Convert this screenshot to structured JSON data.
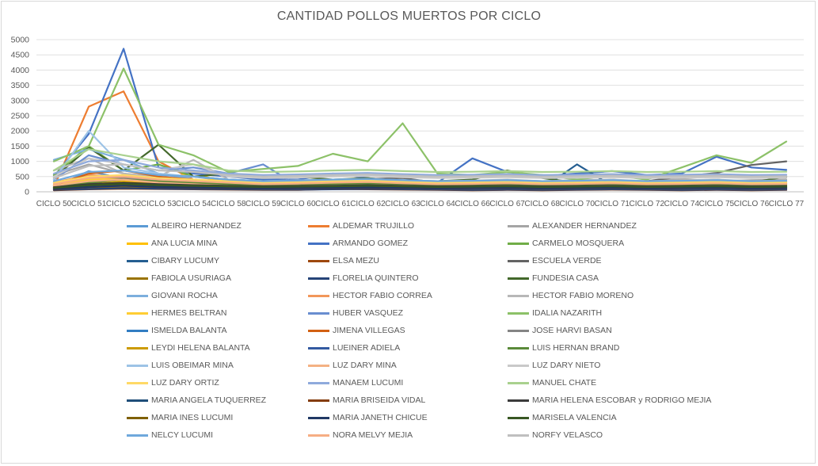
{
  "chart_data": {
    "type": "line",
    "title": "CANTIDAD POLLOS MUERTOS POR CICLO",
    "xlabel": "",
    "ylabel": "",
    "ylim": [
      0,
      5000
    ],
    "yticks": [
      0,
      500,
      1000,
      1500,
      2000,
      2500,
      3000,
      3500,
      4000,
      4500,
      5000
    ],
    "grid": true,
    "legend_position": "bottom",
    "categories": [
      "CICLO 50",
      "CICLO 51",
      "CICLO 52",
      "CICLO 53",
      "CICLO 54",
      "CICLO 58",
      "CICLO 59",
      "CICLO 60",
      "CICLO 61",
      "CICLO 62",
      "CICLO 63",
      "CICLO 64",
      "CICLO 66",
      "CICLO 67",
      "CICLO 68",
      "CICLO 70",
      "CICLO 71",
      "CICLO 72",
      "CICLO 74",
      "CICLO 75",
      "CICLO 76",
      "CICLO 77"
    ],
    "series": [
      {
        "name": "ALBEIRO HERNANDEZ",
        "color": "#5b9bd5",
        "values": [
          150,
          680,
          430,
          300,
          250,
          200,
          150,
          160,
          180,
          220,
          160,
          140,
          150,
          160,
          140,
          200,
          190,
          170,
          160,
          160,
          150,
          160
        ]
      },
      {
        "name": "ALDEMAR TRUJILLO",
        "color": "#ed7d31",
        "values": [
          150,
          2800,
          3300,
          1000,
          400,
          300,
          280,
          260,
          300,
          350,
          280,
          240,
          250,
          260,
          240,
          250,
          260,
          220,
          250,
          280,
          300,
          350
        ]
      },
      {
        "name": "ALEXANDER HERNANDEZ",
        "color": "#a5a5a5",
        "values": [
          550,
          900,
          600,
          400,
          500,
          350,
          300,
          330,
          350,
          400,
          350,
          300,
          320,
          350,
          300,
          400,
          380,
          340,
          420,
          350,
          380,
          400
        ]
      },
      {
        "name": "ANA LUCIA MINA",
        "color": "#ffc000",
        "values": [
          200,
          300,
          350,
          250,
          700,
          150,
          120,
          140,
          160,
          180,
          120,
          80,
          100,
          120,
          100,
          140,
          110,
          90,
          100,
          120,
          150,
          200
        ]
      },
      {
        "name": "ARMANDO GOMEZ",
        "color": "#4472c4",
        "values": [
          500,
          1900,
          4700,
          800,
          600,
          500,
          400,
          400,
          600,
          450,
          350,
          300,
          1100,
          650,
          520,
          600,
          680,
          550,
          600,
          1150,
          800,
          720
        ]
      },
      {
        "name": "CARMELO MOSQUERA",
        "color": "#70ad47",
        "values": [
          550,
          1500,
          700,
          900,
          500,
          400,
          350,
          300,
          330,
          350,
          300,
          250,
          280,
          300,
          250,
          300,
          280,
          250,
          260,
          270,
          250,
          300
        ]
      },
      {
        "name": "CIBARY LUCUMY",
        "color": "#255e91",
        "values": [
          100,
          150,
          200,
          180,
          160,
          140,
          120,
          110,
          150,
          160,
          140,
          120,
          110,
          120,
          110,
          900,
          200,
          150,
          140,
          160,
          120,
          130
        ]
      },
      {
        "name": "ELSA MEZU",
        "color": "#9e480e",
        "values": [
          50,
          80,
          100,
          90,
          80,
          70,
          60,
          60,
          90,
          80,
          70,
          60,
          50,
          60,
          50,
          60,
          70,
          60,
          50,
          60,
          50,
          60
        ]
      },
      {
        "name": "ESCUELA VERDE",
        "color": "#636363",
        "values": [
          150,
          300,
          400,
          350,
          300,
          250,
          200,
          220,
          380,
          420,
          450,
          300,
          320,
          280,
          300,
          340,
          300,
          350,
          500,
          620,
          880,
          1000
        ]
      },
      {
        "name": "FABIOLA USURIAGA",
        "color": "#997300",
        "values": [
          80,
          120,
          150,
          130,
          110,
          90,
          80,
          90,
          100,
          110,
          90,
          80,
          70,
          80,
          70,
          80,
          90,
          80,
          70,
          80,
          70,
          80
        ]
      },
      {
        "name": "FLORELIA QUINTERO",
        "color": "#264478",
        "values": [
          60,
          90,
          120,
          100,
          90,
          80,
          70,
          70,
          80,
          90,
          80,
          70,
          60,
          70,
          60,
          70,
          80,
          70,
          60,
          70,
          60,
          70
        ]
      },
      {
        "name": "FUNDESIA CASA",
        "color": "#43682b",
        "values": [
          450,
          1450,
          700,
          1550,
          500,
          600,
          450,
          500,
          400,
          450,
          300,
          350,
          400,
          700,
          450,
          300,
          400,
          300,
          350,
          400,
          300,
          500
        ]
      },
      {
        "name": "GIOVANI ROCHA",
        "color": "#7cafdd",
        "values": [
          1050,
          1400,
          1050,
          600,
          400,
          300,
          250,
          300,
          280,
          300,
          250,
          200,
          220,
          250,
          200,
          250,
          240,
          200,
          220,
          250,
          200,
          250
        ]
      },
      {
        "name": "HECTOR FABIO CORREA",
        "color": "#f1975a",
        "values": [
          300,
          550,
          500,
          400,
          350,
          300,
          250,
          280,
          400,
          350,
          300,
          250,
          270,
          300,
          280,
          300,
          350,
          300,
          280,
          300,
          280,
          300
        ]
      },
      {
        "name": "HECTOR FABIO MORENO",
        "color": "#b7b7b7",
        "values": [
          700,
          1100,
          600,
          500,
          1050,
          400,
          350,
          380,
          400,
          420,
          380,
          350,
          370,
          400,
          350,
          380,
          400,
          350,
          380,
          400,
          350,
          380
        ]
      },
      {
        "name": "HERMES BELTRAN",
        "color": "#ffcd33",
        "values": [
          250,
          400,
          450,
          350,
          300,
          200,
          180,
          160,
          200,
          220,
          180,
          150,
          160,
          180,
          150,
          170,
          180,
          160,
          150,
          160,
          150,
          180
        ]
      },
      {
        "name": "HUBER VASQUEZ",
        "color": "#698ed0",
        "values": [
          400,
          1200,
          900,
          700,
          800,
          600,
          900,
          200,
          300,
          350,
          300,
          250,
          270,
          300,
          250,
          270,
          250,
          230,
          250,
          270,
          250,
          270
        ]
      },
      {
        "name": "IDALIA NAZARITH",
        "color": "#8cc168",
        "values": [
          1000,
          1500,
          4050,
          1550,
          1200,
          650,
          750,
          850,
          1250,
          1000,
          2250,
          600,
          550,
          650,
          550,
          400,
          550,
          400,
          800,
          1200,
          950,
          1650
        ]
      },
      {
        "name": "ISMELDA BALANTA",
        "color": "#327dc2",
        "values": [
          100,
          150,
          200,
          180,
          150,
          120,
          100,
          110,
          130,
          140,
          120,
          100,
          110,
          120,
          100,
          110,
          120,
          100,
          110,
          120,
          100,
          110
        ]
      },
      {
        "name": "JIMENA VILLEGAS",
        "color": "#d26012",
        "values": [
          200,
          600,
          700,
          500,
          400,
          300,
          250,
          280,
          300,
          350,
          300,
          250,
          270,
          300,
          250,
          270,
          300,
          250,
          270,
          300,
          250,
          270
        ]
      },
      {
        "name": "JOSE HARVI BASAN",
        "color": "#848484",
        "values": [
          300,
          500,
          450,
          400,
          350,
          300,
          250,
          270,
          300,
          320,
          280,
          250,
          260,
          280,
          250,
          260,
          280,
          250,
          260,
          280,
          250,
          260
        ]
      },
      {
        "name": "LEYDI HELENA BALANTA",
        "color": "#cc9a00",
        "values": [
          150,
          250,
          300,
          250,
          200,
          180,
          150,
          160,
          180,
          200,
          180,
          150,
          160,
          180,
          150,
          160,
          180,
          150,
          160,
          180,
          150,
          160
        ]
      },
      {
        "name": "LUEINER ADIELA",
        "color": "#335aa1",
        "values": [
          120,
          200,
          250,
          200,
          180,
          150,
          130,
          140,
          160,
          180,
          160,
          140,
          150,
          160,
          140,
          150,
          160,
          140,
          150,
          160,
          140,
          150
        ]
      },
      {
        "name": "LUIS HERNAN BRAND",
        "color": "#5a8a39",
        "values": [
          200,
          300,
          400,
          350,
          300,
          250,
          220,
          230,
          250,
          270,
          250,
          220,
          230,
          250,
          220,
          230,
          250,
          220,
          230,
          250,
          220,
          230
        ]
      },
      {
        "name": "LUIS OBEIMAR MINA",
        "color": "#9dc3e6",
        "values": [
          400,
          2000,
          800,
          600,
          500,
          400,
          350,
          370,
          400,
          420,
          380,
          350,
          360,
          380,
          350,
          360,
          380,
          350,
          360,
          380,
          350,
          360
        ]
      },
      {
        "name": "LUZ DARY MINA",
        "color": "#f4b183",
        "values": [
          200,
          350,
          400,
          300,
          250,
          200,
          180,
          190,
          200,
          220,
          200,
          180,
          190,
          200,
          180,
          190,
          200,
          180,
          190,
          200,
          180,
          190
        ]
      },
      {
        "name": "LUZ DARY NIETO",
        "color": "#c9c9c9",
        "values": [
          500,
          1100,
          900,
          700,
          900,
          500,
          450,
          470,
          500,
          520,
          480,
          450,
          460,
          480,
          450,
          460,
          480,
          450,
          460,
          480,
          450,
          460
        ]
      },
      {
        "name": "LUZ DARY ORTIZ",
        "color": "#ffd966",
        "values": [
          300,
          500,
          550,
          450,
          400,
          350,
          300,
          320,
          350,
          370,
          330,
          300,
          310,
          330,
          300,
          310,
          330,
          300,
          310,
          330,
          300,
          310
        ]
      },
      {
        "name": "MANAEM LUCUMI",
        "color": "#8faadc",
        "values": [
          600,
          1000,
          1050,
          800,
          700,
          600,
          550,
          570,
          600,
          620,
          580,
          550,
          560,
          580,
          550,
          560,
          580,
          550,
          560,
          580,
          550,
          560
        ]
      },
      {
        "name": "MANUEL CHATE",
        "color": "#a9d18e",
        "values": [
          700,
          1400,
          1200,
          1000,
          900,
          700,
          650,
          670,
          700,
          720,
          680,
          650,
          660,
          680,
          650,
          660,
          680,
          650,
          660,
          680,
          650,
          660
        ]
      },
      {
        "name": "MARIA ANGELA TUQUERREZ",
        "color": "#1f4e79",
        "values": [
          100,
          200,
          250,
          200,
          180,
          150,
          130,
          140,
          160,
          180,
          160,
          140,
          150,
          160,
          140,
          150,
          160,
          140,
          150,
          160,
          140,
          150
        ]
      },
      {
        "name": "MARIA BRISEIDA VIDAL",
        "color": "#843c0c",
        "values": [
          80,
          150,
          200,
          150,
          130,
          110,
          100,
          110,
          120,
          130,
          120,
          100,
          110,
          120,
          100,
          110,
          120,
          100,
          110,
          120,
          100,
          110
        ]
      },
      {
        "name": "MARIA HELENA ESCOBAR y RODRIGO MEJIA",
        "color": "#3b3b3b",
        "values": [
          150,
          250,
          300,
          250,
          220,
          200,
          180,
          190,
          200,
          220,
          200,
          180,
          190,
          200,
          180,
          190,
          200,
          180,
          190,
          200,
          180,
          190
        ]
      },
      {
        "name": "MARIA INES LUCUMI",
        "color": "#7f6000",
        "values": [
          100,
          180,
          220,
          180,
          160,
          140,
          120,
          130,
          140,
          160,
          140,
          120,
          130,
          140,
          120,
          130,
          140,
          120,
          130,
          140,
          120,
          130
        ]
      },
      {
        "name": "MARIA JANETH CHICUE",
        "color": "#203864",
        "values": [
          90,
          160,
          200,
          160,
          140,
          120,
          110,
          120,
          130,
          140,
          130,
          110,
          120,
          130,
          110,
          120,
          130,
          110,
          120,
          130,
          110,
          120
        ]
      },
      {
        "name": "MARISELA VALENCIA",
        "color": "#385723",
        "values": [
          130,
          220,
          260,
          220,
          200,
          180,
          160,
          170,
          180,
          200,
          180,
          160,
          170,
          180,
          160,
          170,
          180,
          160,
          170,
          180,
          160,
          170
        ]
      },
      {
        "name": "NELCY LUCUMI",
        "color": "#6fa8dc",
        "values": [
          350,
          650,
          700,
          550,
          500,
          400,
          350,
          370,
          400,
          420,
          380,
          350,
          360,
          380,
          350,
          360,
          380,
          350,
          360,
          380,
          350,
          360
        ]
      },
      {
        "name": "NORA MELVY MEJIA",
        "color": "#f6ae84",
        "values": [
          250,
          450,
          500,
          400,
          350,
          300,
          250,
          270,
          300,
          320,
          280,
          250,
          260,
          280,
          250,
          260,
          280,
          250,
          260,
          280,
          250,
          260
        ]
      },
      {
        "name": "NORFY VELASCO",
        "color": "#bfbfbf",
        "values": [
          450,
          850,
          900,
          700,
          650,
          550,
          500,
          520,
          550,
          570,
          530,
          500,
          510,
          530,
          500,
          510,
          530,
          500,
          510,
          530,
          500,
          510
        ]
      }
    ]
  }
}
